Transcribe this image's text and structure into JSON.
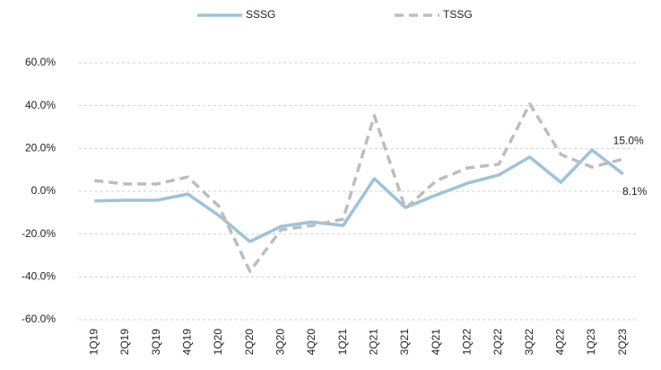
{
  "chart_data": {
    "type": "line",
    "categories": [
      "1Q19",
      "2Q19",
      "3Q19",
      "4Q19",
      "1Q20",
      "2Q20",
      "3Q20",
      "4Q20",
      "1Q21",
      "2Q21",
      "3Q21",
      "4Q21",
      "1Q22",
      "2Q22",
      "3Q22",
      "4Q22",
      "1Q23",
      "2Q23"
    ],
    "series": [
      {
        "name": "SSSG",
        "color": "#9dc3d9",
        "style": "solid",
        "values": [
          -4.5,
          -4.2,
          -4.2,
          -1.3,
          -11.3,
          -23.5,
          -16.4,
          -14.3,
          -16,
          5.9,
          -7.6,
          -1.7,
          3.8,
          7.6,
          16.0,
          4.2,
          19.3,
          8.1
        ],
        "value_labels": [
          null,
          null,
          null,
          null,
          null,
          null,
          null,
          null,
          null,
          null,
          null,
          null,
          null,
          null,
          null,
          null,
          null,
          "8.1%"
        ]
      },
      {
        "name": "TSSG",
        "color": "#bdbdbd",
        "style": "dashed",
        "values": [
          5.0,
          3.4,
          3.4,
          6.7,
          -7,
          -37.4,
          -18,
          -16,
          -13,
          35.3,
          -8,
          5,
          10.9,
          12.6,
          40.8,
          17.2,
          11.3,
          15.0
        ],
        "value_labels": [
          null,
          null,
          null,
          null,
          null,
          null,
          null,
          null,
          null,
          null,
          null,
          null,
          null,
          null,
          null,
          null,
          null,
          "15.0%"
        ]
      }
    ],
    "ylim": [
      -60,
      60
    ],
    "yticks": [
      {
        "value": -60,
        "label": "-60.0%"
      },
      {
        "value": -40,
        "label": "-40.0%"
      },
      {
        "value": -20,
        "label": "-20.0%"
      },
      {
        "value": 0,
        "label": "0.0%"
      },
      {
        "value": 20,
        "label": "20.0%"
      },
      {
        "value": 40,
        "label": "40.0%"
      },
      {
        "value": 60,
        "label": "60.0%"
      }
    ],
    "grid": true,
    "legend": "top"
  }
}
